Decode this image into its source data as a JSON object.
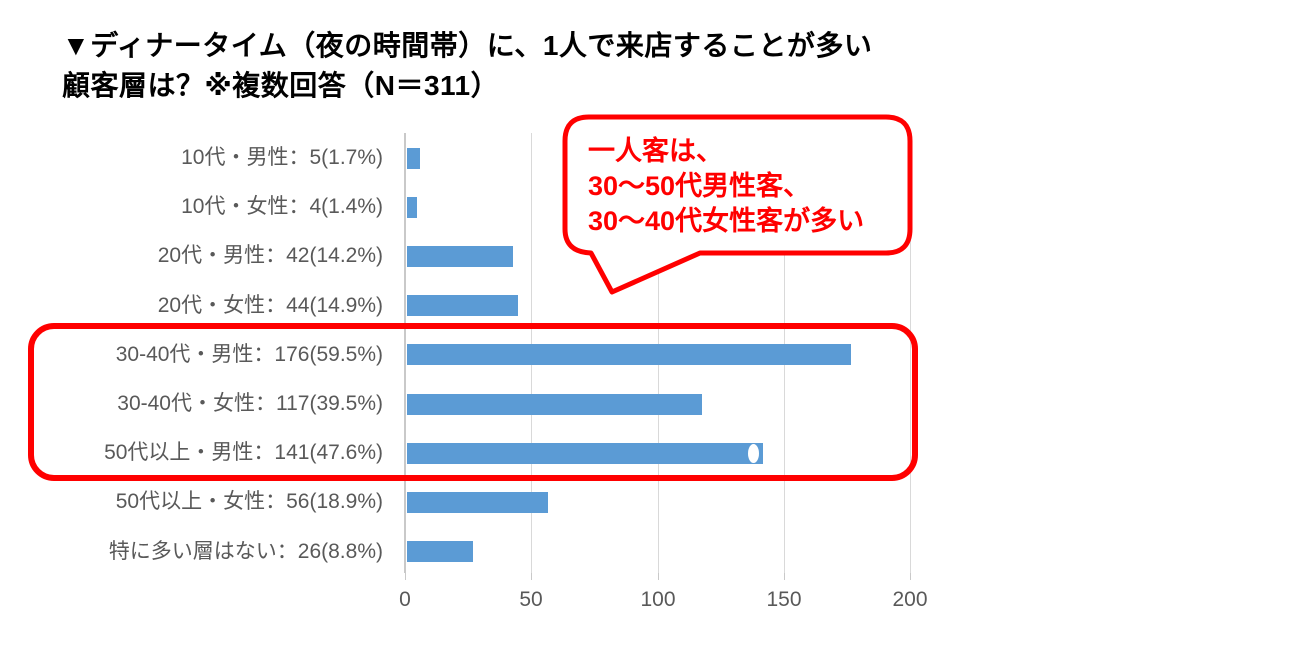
{
  "title": {
    "line1": "▼ディナータイム（夜の時間帯）に、1人で来店することが多い",
    "line2": "顧客層は？※複数回答（N＝311）"
  },
  "chart_data": {
    "type": "bar",
    "orientation": "horizontal",
    "title": "ディナータイム（夜の時間帯）に、1人で来店することが多い顧客層は？ ※複数回答（N＝311）",
    "n_total": 311,
    "categories": [
      "10代・男性",
      "10代・女性",
      "20代・男性",
      "20代・女性",
      "30-40代・男性",
      "30-40代・女性",
      "50代以上・男性",
      "50代以上・女性",
      "特に多い層はない"
    ],
    "values": [
      5,
      4,
      42,
      44,
      176,
      117,
      141,
      56,
      26
    ],
    "percentages": [
      1.7,
      1.4,
      14.2,
      14.9,
      59.5,
      39.5,
      47.6,
      18.9,
      8.8
    ],
    "row_labels": [
      "10代・男性：5(1.7%)",
      "10代・女性：4(1.4%)",
      "20代・男性：42(14.2%)",
      "20代・女性：44(14.9%)",
      "30-40代・男性：176(59.5%)",
      "30-40代・女性：117(39.5%)",
      "50代以上・男性：141(47.6%)",
      "50代以上・女性：56(18.9%)",
      "特に多い層はない：26(8.8%)"
    ],
    "xlabel": "",
    "ylabel": "",
    "xlim": [
      0,
      200
    ],
    "xticks": [
      0,
      50,
      100,
      150,
      200
    ],
    "grid": true,
    "legend": false,
    "bar_color": "#5B9BD5",
    "gridline_color": "#D9D9D9",
    "axis_color": "#C9C9C9",
    "label_color": "#595959",
    "bar_end_mark": {
      "row_index": 6
    }
  },
  "callout": {
    "lines": [
      "一人客は、",
      "30〜50代男性客、",
      "30〜40代女性客が多い"
    ],
    "color": "#FF0000"
  },
  "highlight": {
    "color": "#FF0000",
    "rows": [
      "30-40代・男性",
      "30-40代・女性",
      "50代以上・男性"
    ]
  }
}
